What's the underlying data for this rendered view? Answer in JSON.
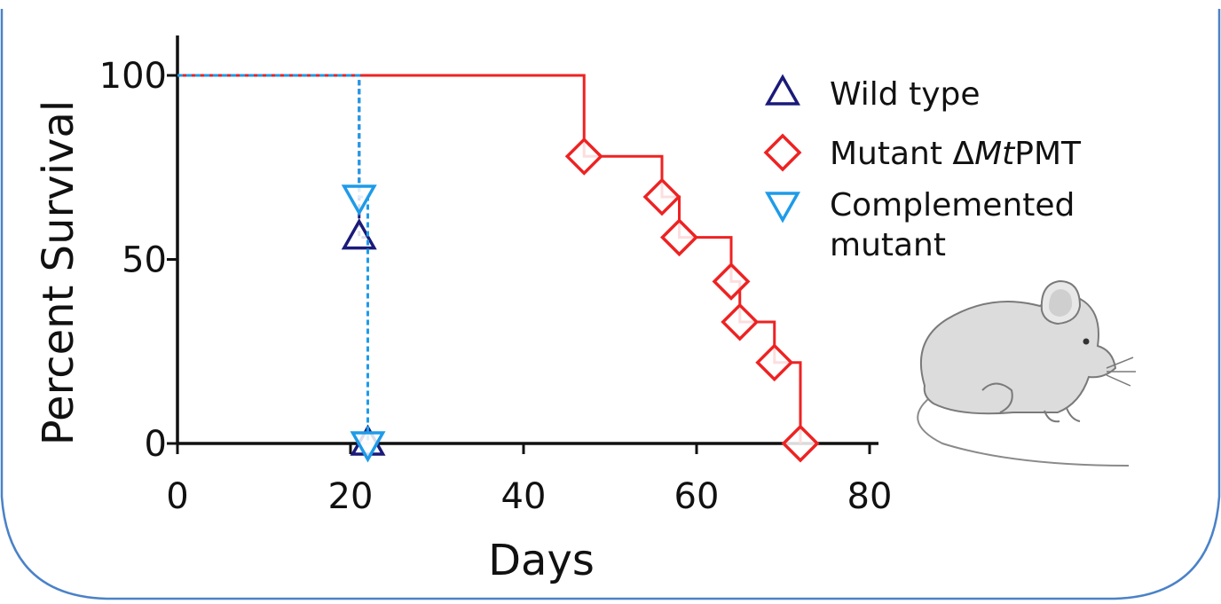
{
  "chart_data": {
    "type": "line",
    "subtype": "kaplan-meier step survival",
    "title": "",
    "xlabel": "Days",
    "ylabel": "Percent Survival",
    "xlim": [
      0,
      80
    ],
    "ylim": [
      0,
      100
    ],
    "x_ticks": [
      0,
      20,
      40,
      60,
      80
    ],
    "y_ticks": [
      0,
      50,
      100
    ],
    "x_tick_labels": [
      "0",
      "20",
      "40",
      "60",
      "80"
    ],
    "y_tick_labels": [
      "0",
      "50",
      "100"
    ],
    "grid": false,
    "legend_position": "top-right",
    "series": [
      {
        "name": "Wild type",
        "color": "#1a1a7a",
        "marker": "triangle-up",
        "line_style": "dashed",
        "steps": [
          {
            "x": 0,
            "y": 100
          },
          {
            "x": 21,
            "y": 100
          },
          {
            "x": 21,
            "y": 56
          },
          {
            "x": 22,
            "y": 56
          },
          {
            "x": 22,
            "y": 0
          }
        ],
        "markers": [
          {
            "x": 21,
            "y": 56
          },
          {
            "x": 22,
            "y": 0
          }
        ]
      },
      {
        "name": "Mutant ΔMtPMT",
        "name_parts": [
          "Mutant Δ",
          "Mt",
          "PMT"
        ],
        "color": "#ee2222",
        "marker": "diamond",
        "line_style": "solid",
        "steps": [
          {
            "x": 0,
            "y": 100
          },
          {
            "x": 47,
            "y": 100
          },
          {
            "x": 47,
            "y": 78
          },
          {
            "x": 56,
            "y": 78
          },
          {
            "x": 56,
            "y": 67
          },
          {
            "x": 58,
            "y": 67
          },
          {
            "x": 58,
            "y": 56
          },
          {
            "x": 64,
            "y": 56
          },
          {
            "x": 64,
            "y": 44
          },
          {
            "x": 65,
            "y": 44
          },
          {
            "x": 65,
            "y": 33
          },
          {
            "x": 69,
            "y": 33
          },
          {
            "x": 69,
            "y": 22
          },
          {
            "x": 72,
            "y": 22
          },
          {
            "x": 72,
            "y": 0
          }
        ],
        "markers": [
          {
            "x": 47,
            "y": 78
          },
          {
            "x": 56,
            "y": 67
          },
          {
            "x": 58,
            "y": 56
          },
          {
            "x": 64,
            "y": 44
          },
          {
            "x": 65,
            "y": 33
          },
          {
            "x": 69,
            "y": 22
          },
          {
            "x": 72,
            "y": 0
          }
        ]
      },
      {
        "name": "Complemented mutant",
        "name_lines": [
          "Complemented",
          "mutant"
        ],
        "color": "#1e9be8",
        "marker": "triangle-down",
        "line_style": "dashed",
        "steps": [
          {
            "x": 0,
            "y": 100
          },
          {
            "x": 21,
            "y": 100
          },
          {
            "x": 21,
            "y": 67
          },
          {
            "x": 22,
            "y": 67
          },
          {
            "x": 22,
            "y": 0
          }
        ],
        "markers": [
          {
            "x": 21,
            "y": 67
          },
          {
            "x": 22,
            "y": 0
          }
        ]
      }
    ]
  },
  "decoration": {
    "frame_color": "#4a82c8",
    "mouse_illustration": "mouse-illustration"
  }
}
